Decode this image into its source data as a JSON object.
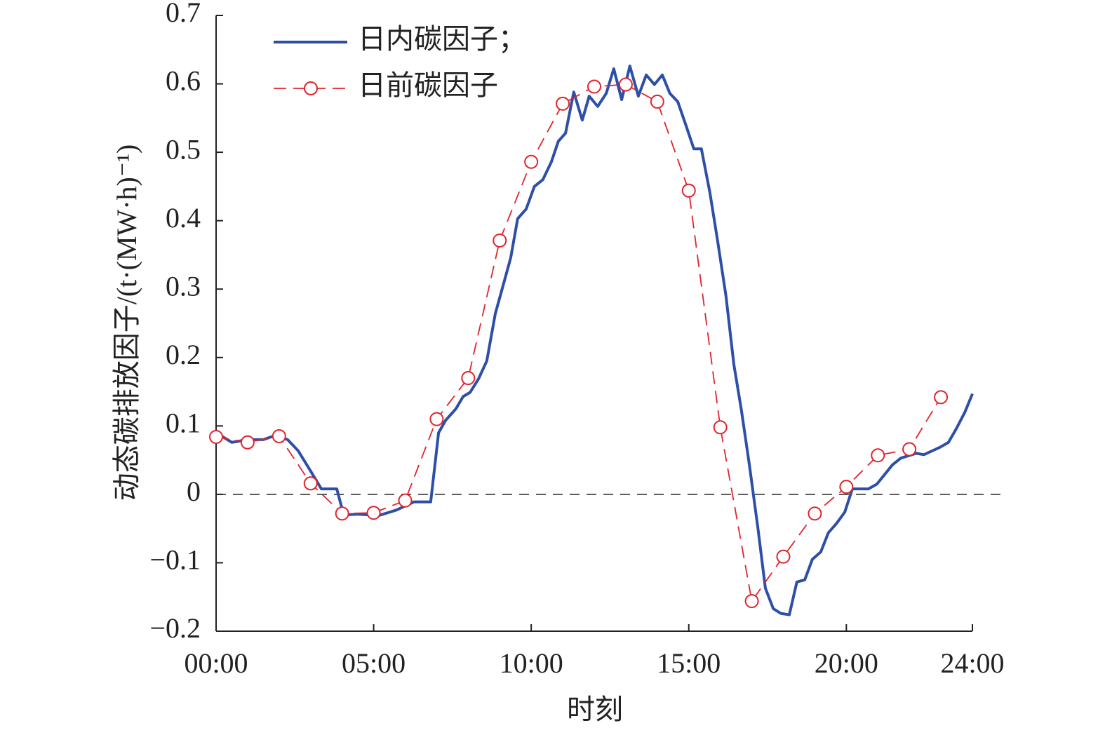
{
  "chart_data": {
    "type": "line",
    "xlabel": "时刻",
    "ylabel": "动态碳排放因子/(t·(MW·h)⁻¹)",
    "xlim": [
      0,
      24
    ],
    "xticks": [
      {
        "value": 0,
        "label": "00:00"
      },
      {
        "value": 5,
        "label": "05:00"
      },
      {
        "value": 10,
        "label": "10:00"
      },
      {
        "value": 15,
        "label": "15:00"
      },
      {
        "value": 20,
        "label": "20:00"
      },
      {
        "value": 24,
        "label": "24:00"
      }
    ],
    "ylim": [
      -0.2,
      0.7
    ],
    "yticks": [
      {
        "value": -0.2,
        "label": "−0.2"
      },
      {
        "value": -0.1,
        "label": "−0.1"
      },
      0,
      0.1,
      0.2,
      0.3,
      0.4,
      0.5,
      0.6,
      0.7
    ],
    "zero_line": true,
    "legend": "upper left",
    "series": [
      {
        "name": "日内碳因子；",
        "color": "#2e4fa8",
        "style": "solid",
        "marker": "none",
        "x": [
          0,
          0.5,
          1,
          1.5,
          1.87,
          2.27,
          2.6,
          3.0,
          3.34,
          3.83,
          4.05,
          4.5,
          5.16,
          5.72,
          6.28,
          6.81,
          7.06,
          7.28,
          7.61,
          7.84,
          8.06,
          8.33,
          8.59,
          8.86,
          9.13,
          9.35,
          9.57,
          9.84,
          10.1,
          10.37,
          10.64,
          10.86,
          11.09,
          11.35,
          11.62,
          11.84,
          12.11,
          12.38,
          12.62,
          12.87,
          13.13,
          13.4,
          13.65,
          13.91,
          14.16,
          14.4,
          14.65,
          14.92,
          15.16,
          15.4,
          15.67,
          15.92,
          16.18,
          16.43,
          16.67,
          16.92,
          17.19,
          17.43,
          17.68,
          17.92,
          18.19,
          18.43,
          18.68,
          18.92,
          19.19,
          19.43,
          19.68,
          19.95,
          20.19,
          20.7,
          20.97,
          21.46,
          21.73,
          22.22,
          22.46,
          22.98,
          23.24,
          23.49,
          23.76,
          24
        ],
        "values": [
          0.09,
          0.076,
          0.08,
          0.08,
          0.086,
          0.08,
          0.064,
          0.034,
          0.008,
          0.008,
          -0.03,
          -0.029,
          -0.031,
          -0.023,
          -0.011,
          -0.011,
          0.09,
          0.108,
          0.125,
          0.143,
          0.149,
          0.169,
          0.195,
          0.264,
          0.309,
          0.346,
          0.403,
          0.417,
          0.45,
          0.46,
          0.486,
          0.516,
          0.528,
          0.588,
          0.547,
          0.582,
          0.567,
          0.586,
          0.622,
          0.577,
          0.626,
          0.582,
          0.613,
          0.599,
          0.613,
          0.586,
          0.574,
          0.538,
          0.505,
          0.505,
          0.441,
          0.369,
          0.29,
          0.19,
          0.123,
          0.044,
          -0.048,
          -0.137,
          -0.167,
          -0.174,
          -0.176,
          -0.128,
          -0.125,
          -0.095,
          -0.084,
          -0.056,
          -0.043,
          -0.026,
          0.008,
          0.008,
          0.015,
          0.043,
          0.053,
          0.06,
          0.058,
          0.069,
          0.076,
          0.096,
          0.12,
          0.147
        ]
      },
      {
        "name": "日前碳因子",
        "color": "#e0242b",
        "style": "dashed",
        "marker": "circle",
        "x": [
          0,
          1,
          2,
          3,
          4,
          5,
          6,
          7,
          8,
          9,
          10,
          11,
          12,
          13,
          14,
          15,
          16,
          17,
          18,
          19,
          20,
          21,
          22,
          23
        ],
        "values": [
          0.084,
          0.076,
          0.085,
          0.016,
          -0.028,
          -0.027,
          -0.009,
          0.11,
          0.17,
          0.371,
          0.486,
          0.571,
          0.596,
          0.599,
          0.574,
          0.444,
          0.098,
          -0.156,
          -0.091,
          -0.028,
          0.011,
          0.057,
          0.066,
          0.142
        ]
      }
    ]
  }
}
